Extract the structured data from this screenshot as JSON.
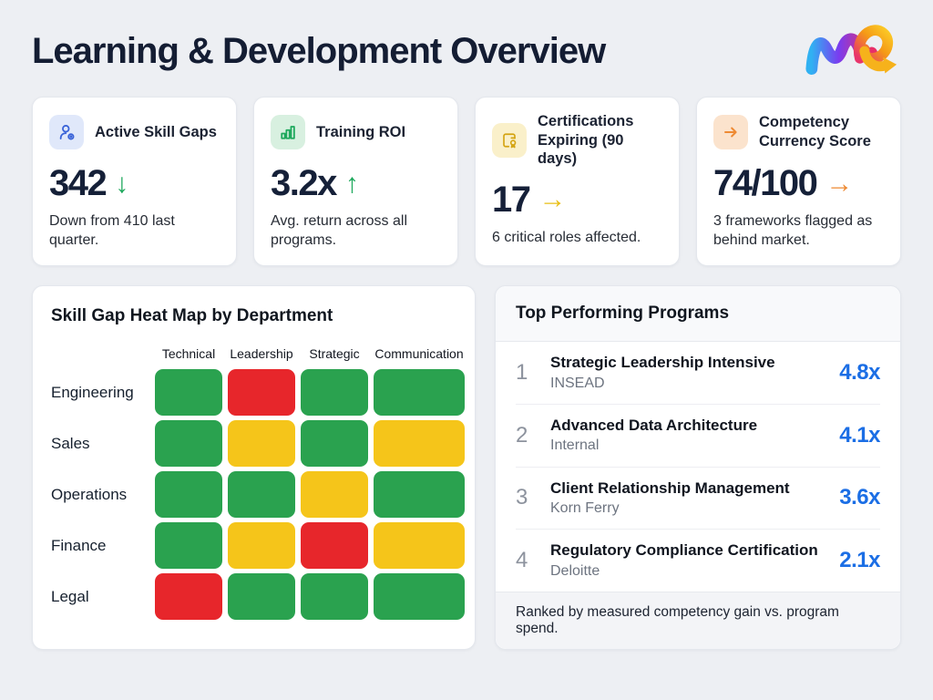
{
  "page": {
    "title": "Learning & Development Overview"
  },
  "brand": {
    "logo": "me-ribbon-logo"
  },
  "kpis": [
    {
      "icon": "user-gear-icon",
      "icon_bg": "#e0e8fa",
      "icon_color": "#3a63d8",
      "label": "Active Skill Gaps",
      "value": "342",
      "arrow": "↓",
      "arrow_color": "#1da85c",
      "note": "Down from 410 last quarter."
    },
    {
      "icon": "bar-chart-icon",
      "icon_bg": "#d8f0e0",
      "icon_color": "#1da85c",
      "label": "Training ROI",
      "value": "3.2x",
      "arrow": "↑",
      "arrow_color": "#1da85c",
      "note": "Avg. return across all programs."
    },
    {
      "icon": "certificate-icon",
      "icon_bg": "#faf0ca",
      "icon_color": "#d4a413",
      "label": "Certifications Expiring (90 days)",
      "value": "17",
      "arrow": "→",
      "arrow_color": "#e9bf17",
      "note": "6 critical roles affected."
    },
    {
      "icon": "arrow-right-icon",
      "icon_bg": "#fbe3cd",
      "icon_color": "#ee8a33",
      "label": "Competency Currency Score",
      "value": "74/100",
      "arrow": "→",
      "arrow_color": "#ee8a33",
      "note": "3 frameworks flagged as behind market."
    }
  ],
  "heatmap": {
    "title": "Skill Gap Heat Map by Department",
    "columns": [
      "Technical",
      "Leadership",
      "Strategic",
      "Communication"
    ],
    "rows": [
      "Engineering",
      "Sales",
      "Operations",
      "Finance",
      "Legal"
    ],
    "cells": [
      [
        "green",
        "red",
        "green",
        "green"
      ],
      [
        "green",
        "yellow",
        "green",
        "yellow"
      ],
      [
        "green",
        "green",
        "yellow",
        "green"
      ],
      [
        "green",
        "yellow",
        "red",
        "yellow"
      ],
      [
        "red",
        "green",
        "green",
        "green"
      ]
    ],
    "palette": {
      "green": "#2aa24f",
      "yellow": "#f5c51a",
      "red": "#e7262b"
    }
  },
  "programs": {
    "title": "Top Performing Programs",
    "value_color": "#1b6ee5",
    "rows": [
      {
        "rank": "1",
        "name": "Strategic Leadership Intensive",
        "provider": "INSEAD",
        "value": "4.8x"
      },
      {
        "rank": "2",
        "name": "Advanced Data Architecture",
        "provider": "Internal",
        "value": "4.1x"
      },
      {
        "rank": "3",
        "name": "Client Relationship Management",
        "provider": "Korn Ferry",
        "value": "3.6x"
      },
      {
        "rank": "4",
        "name": "Regulatory Compliance Certification",
        "provider": "Deloitte",
        "value": "2.1x"
      }
    ],
    "footer": "Ranked by measured competency gain vs. program spend."
  },
  "chart_data": [
    {
      "type": "heatmap",
      "title": "Skill Gap Heat Map by Department",
      "x": [
        "Technical",
        "Leadership",
        "Strategic",
        "Communication"
      ],
      "y": [
        "Engineering",
        "Sales",
        "Operations",
        "Finance",
        "Legal"
      ],
      "values": [
        [
          "green",
          "red",
          "green",
          "green"
        ],
        [
          "green",
          "yellow",
          "green",
          "yellow"
        ],
        [
          "green",
          "green",
          "yellow",
          "green"
        ],
        [
          "green",
          "yellow",
          "red",
          "yellow"
        ],
        [
          "red",
          "green",
          "green",
          "green"
        ]
      ],
      "color_scale": {
        "green": "#2aa24f",
        "yellow": "#f5c51a",
        "red": "#e7262b"
      },
      "legend": false
    },
    {
      "type": "table",
      "title": "Top Performing Programs",
      "columns": [
        "rank",
        "program",
        "provider",
        "roi_multiple"
      ],
      "rows": [
        [
          1,
          "Strategic Leadership Intensive",
          "INSEAD",
          "4.8x"
        ],
        [
          2,
          "Advanced Data Architecture",
          "Internal",
          "4.1x"
        ],
        [
          3,
          "Client Relationship Management",
          "Korn Ferry",
          "3.6x"
        ],
        [
          4,
          "Regulatory Compliance Certification",
          "Deloitte",
          "2.1x"
        ]
      ],
      "note": "Ranked by measured competency gain vs. program spend."
    }
  ]
}
